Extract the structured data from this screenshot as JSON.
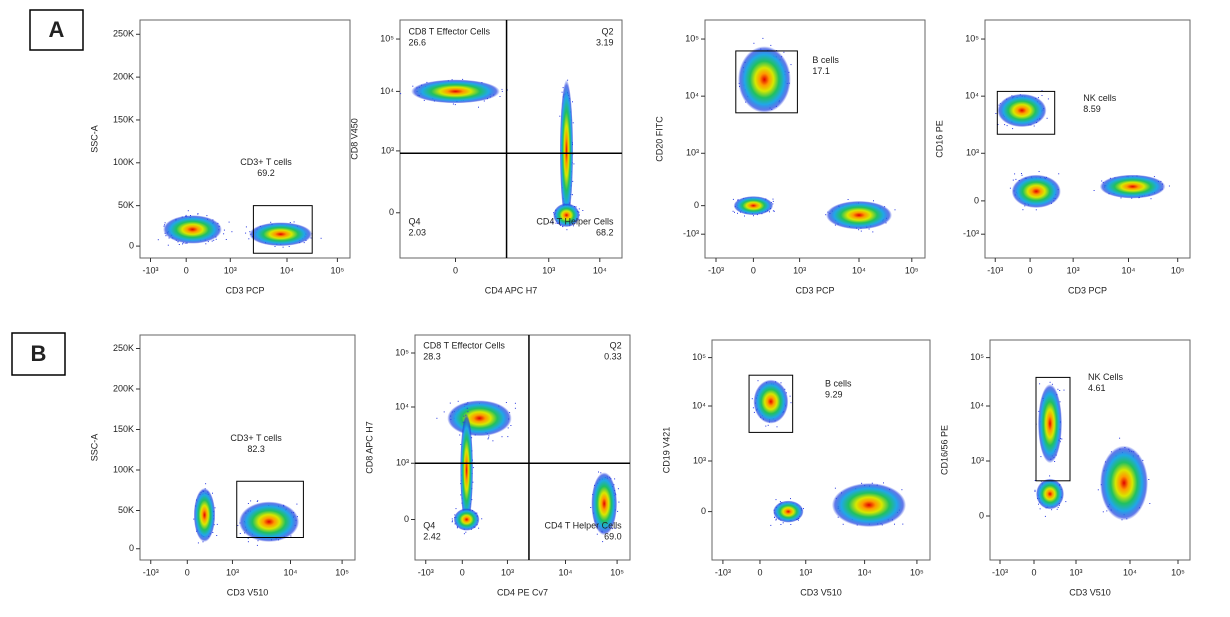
{
  "panels": [
    {
      "label": "A",
      "plots": [
        {
          "x_label": "CD3 PCP",
          "y_label": "SSC-A",
          "x_ticks": [
            "-10³",
            "0",
            "10³",
            "10⁴",
            "10⁵"
          ],
          "y_ticks": [
            "250K",
            "200K",
            "150K",
            "100K",
            "50K",
            "0"
          ],
          "gates": [
            {
              "name": "CD3+ T cells",
              "value": "69.2"
            }
          ]
        },
        {
          "x_label": "CD4 APC H7",
          "y_label": "CD8 V450",
          "x_ticks": [
            "0",
            "10³",
            "10⁴"
          ],
          "y_ticks": [
            "10⁵",
            "10⁴",
            "10³",
            "0"
          ],
          "gates": [
            {
              "name": "CD8 T Effector Cells",
              "value": "26.6"
            },
            {
              "name": "Q2",
              "value": "3.19"
            },
            {
              "name": "Q4",
              "value": "2.03"
            },
            {
              "name": "CD4 T Helper Cells",
              "value": "68.2"
            }
          ]
        },
        {
          "x_label": "CD3 PCP",
          "y_label": "CD20 FITC",
          "x_ticks": [
            "-10³",
            "0",
            "10³",
            "10⁴",
            "10⁵"
          ],
          "y_ticks": [
            "10⁵",
            "10⁴",
            "10³",
            "0",
            "-10³"
          ],
          "gates": [
            {
              "name": "B cells",
              "value": "17.1"
            }
          ]
        },
        {
          "x_label": "CD3 PCP",
          "y_label": "CD16 PE",
          "x_ticks": [
            "-10³",
            "0",
            "10³",
            "10⁴",
            "10⁵"
          ],
          "y_ticks": [
            "10⁵",
            "10⁴",
            "10³",
            "0",
            "-10³"
          ],
          "gates": [
            {
              "name": "NK cells",
              "value": "8.59"
            }
          ]
        }
      ]
    },
    {
      "label": "B",
      "plots": [
        {
          "x_label": "CD3 V510",
          "y_label": "SSC-A",
          "x_ticks": [
            "-10³",
            "0",
            "10³",
            "10⁴",
            "10⁵"
          ],
          "y_ticks": [
            "250K",
            "200K",
            "150K",
            "100K",
            "50K",
            "0"
          ],
          "gates": [
            {
              "name": "CD3+ T cells",
              "value": "82.3"
            }
          ]
        },
        {
          "x_label": "CD4 PE Cv7",
          "y_label": "CD8 APC H7",
          "x_ticks": [
            "-10³",
            "0",
            "10³",
            "10⁴",
            "10⁵"
          ],
          "y_ticks": [
            "10⁵",
            "10⁴",
            "10³",
            "0"
          ],
          "gates": [
            {
              "name": "CD8 T Effector Cells",
              "value": "28.3"
            },
            {
              "name": "Q2",
              "value": "0.33"
            },
            {
              "name": "Q4",
              "value": "2.42"
            },
            {
              "name": "CD4 T Helper Cells",
              "value": "69.0"
            }
          ]
        },
        {
          "x_label": "CD3 V510",
          "y_label": "CD19 V421",
          "x_ticks": [
            "-10³",
            "0",
            "10³",
            "10⁴",
            "10⁵"
          ],
          "y_ticks": [
            "10⁵",
            "10⁴",
            "10³",
            "0"
          ],
          "gates": [
            {
              "name": "B cells",
              "value": "9.29"
            }
          ]
        },
        {
          "x_label": "CD3 V510",
          "y_label": "CD16/56 PE",
          "x_ticks": [
            "-10³",
            "0",
            "10³",
            "10⁴",
            "10⁵"
          ],
          "y_ticks": [
            "10⁵",
            "10⁴",
            "10³",
            "0"
          ],
          "gates": [
            {
              "name": "NK Cells",
              "value": "4.61"
            }
          ]
        }
      ]
    }
  ]
}
